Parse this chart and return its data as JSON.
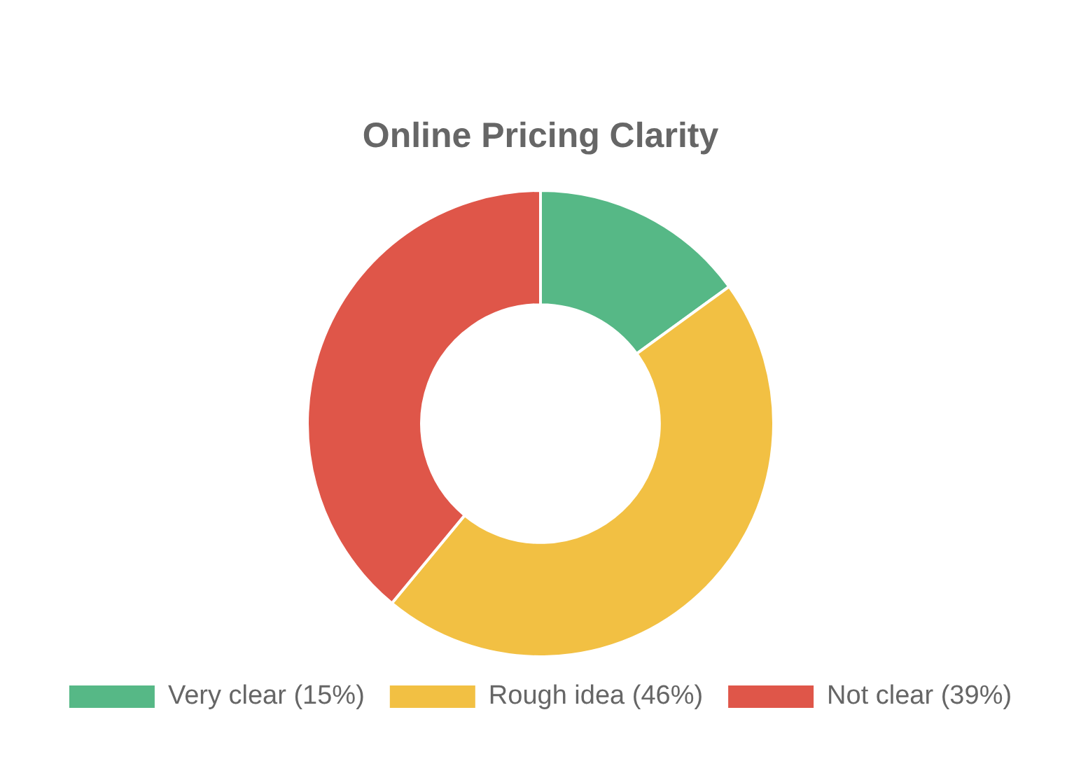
{
  "chart_data": {
    "type": "donut",
    "title": "Online Pricing Clarity",
    "categories": [
      "Very clear (15%)",
      "Rough idea (46%)",
      "Not clear (39%)"
    ],
    "values": [
      15,
      46,
      39
    ],
    "colors": [
      "#56b886",
      "#f2c043",
      "#df5649"
    ],
    "legend": "bottom"
  }
}
